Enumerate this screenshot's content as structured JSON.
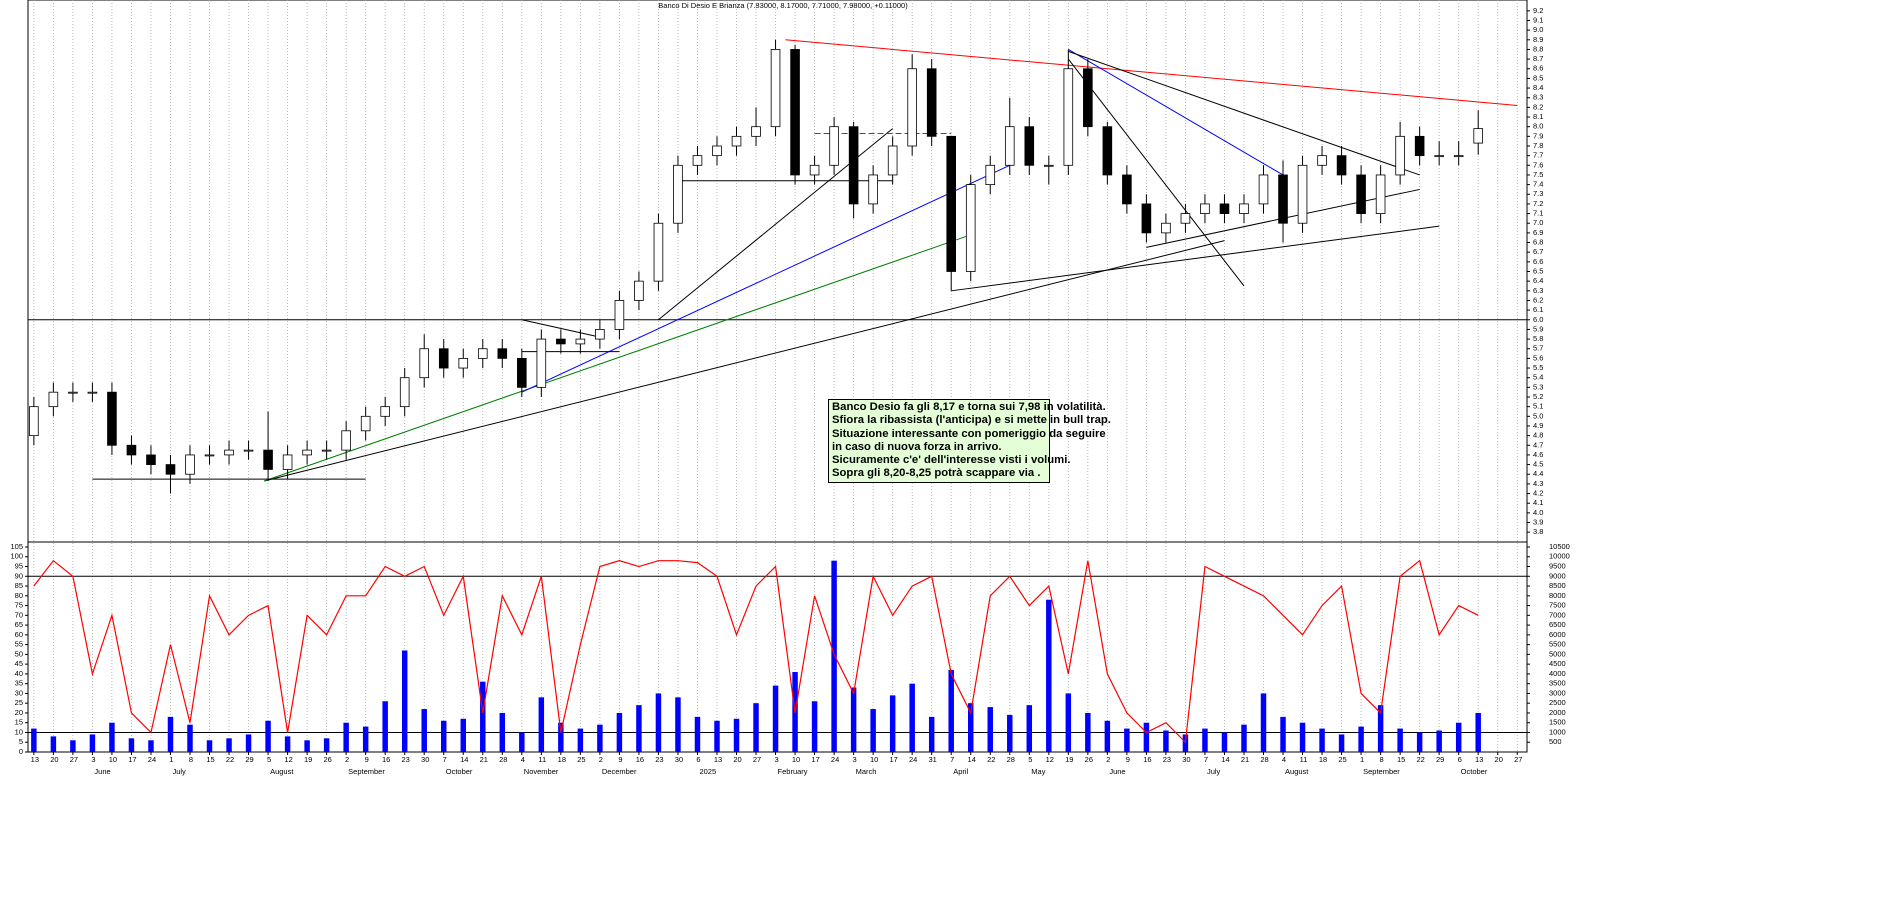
{
  "chart_data": {
    "type": "candlestick",
    "title": "Banco Di Desio E Brianza (7.83000, 8.17000, 7.71000, 7.98000, +0.11000)",
    "annotation": [
      "Banco Desio fa gli 8,17 e torna sui 7,98 in volatilità.",
      "Sfiora la ribassista (l'anticipa) e si mette in bull trap.",
      "Situazione interessante con pomeriggio da seguire",
      "in caso di nuova forza in arrivo.",
      "Sicuramente c'e' dell'interesse visti i volumi.",
      "Sopra gli 8,20-8,25 potrà scappare via ."
    ],
    "xlim": [
      -0.3,
      76.5
    ],
    "grid": "x",
    "xticks": [
      {
        "value": 0,
        "label": "13"
      },
      {
        "value": 1,
        "label": "20"
      },
      {
        "value": 2,
        "label": "27"
      },
      {
        "value": 3,
        "label": "3"
      },
      {
        "value": 4,
        "label": "10"
      },
      {
        "value": 5,
        "label": "17"
      },
      {
        "value": 6,
        "label": "24"
      },
      {
        "value": 7,
        "label": "1"
      },
      {
        "value": 8,
        "label": "8"
      },
      {
        "value": 9,
        "label": "15"
      },
      {
        "value": 10,
        "label": "22"
      },
      {
        "value": 11,
        "label": "29"
      },
      {
        "value": 12,
        "label": "5"
      },
      {
        "value": 13,
        "label": "12"
      },
      {
        "value": 14,
        "label": "19"
      },
      {
        "value": 15,
        "label": "26"
      },
      {
        "value": 16,
        "label": "2"
      },
      {
        "value": 17,
        "label": "9"
      },
      {
        "value": 18,
        "label": "16"
      },
      {
        "value": 19,
        "label": "23"
      },
      {
        "value": 20,
        "label": "30"
      },
      {
        "value": 21,
        "label": "7"
      },
      {
        "value": 22,
        "label": "14"
      },
      {
        "value": 23,
        "label": "21"
      },
      {
        "value": 24,
        "label": "28"
      },
      {
        "value": 25,
        "label": "4"
      },
      {
        "value": 26,
        "label": "11"
      },
      {
        "value": 27,
        "label": "18"
      },
      {
        "value": 28,
        "label": "25"
      },
      {
        "value": 29,
        "label": "2"
      },
      {
        "value": 30,
        "label": "9"
      },
      {
        "value": 31,
        "label": "16"
      },
      {
        "value": 32,
        "label": "23"
      },
      {
        "value": 33,
        "label": "30"
      },
      {
        "value": 34,
        "label": "6"
      },
      {
        "value": 35,
        "label": "13"
      },
      {
        "value": 36,
        "label": "20"
      },
      {
        "value": 37,
        "label": "27"
      },
      {
        "value": 38,
        "label": "3"
      },
      {
        "value": 39,
        "label": "10"
      },
      {
        "value": 40,
        "label": "17"
      },
      {
        "value": 41,
        "label": "24"
      },
      {
        "value": 42,
        "label": "3"
      },
      {
        "value": 43,
        "label": "10"
      },
      {
        "value": 44,
        "label": "17"
      },
      {
        "value": 45,
        "label": "24"
      },
      {
        "value": 46,
        "label": "31"
      },
      {
        "value": 47,
        "label": "7"
      },
      {
        "value": 48,
        "label": "14"
      },
      {
        "value": 49,
        "label": "22"
      },
      {
        "value": 50,
        "label": "28"
      },
      {
        "value": 51,
        "label": "5"
      },
      {
        "value": 52,
        "label": "12"
      },
      {
        "value": 53,
        "label": "19"
      },
      {
        "value": 54,
        "label": "26"
      },
      {
        "value": 55,
        "label": "2"
      },
      {
        "value": 56,
        "label": "9"
      },
      {
        "value": 57,
        "label": "16"
      },
      {
        "value": 58,
        "label": "23"
      },
      {
        "value": 59,
        "label": "30"
      },
      {
        "value": 60,
        "label": "7"
      },
      {
        "value": 61,
        "label": "14"
      },
      {
        "value": 62,
        "label": "21"
      },
      {
        "value": 63,
        "label": "28"
      },
      {
        "value": 64,
        "label": "4"
      },
      {
        "value": 65,
        "label": "11"
      },
      {
        "value": 66,
        "label": "18"
      },
      {
        "value": 67,
        "label": "25"
      },
      {
        "value": 68,
        "label": "1"
      },
      {
        "value": 69,
        "label": "8"
      },
      {
        "value": 70,
        "label": "15"
      },
      {
        "value": 71,
        "label": "22"
      },
      {
        "value": 72,
        "label": "29"
      },
      {
        "value": 73,
        "label": "6"
      },
      {
        "value": 74,
        "label": "13"
      },
      {
        "value": 75,
        "label": "20"
      },
      {
        "value": 76,
        "label": "27"
      }
    ],
    "months": [
      {
        "value": 3,
        "label": "June"
      },
      {
        "value": 7,
        "label": "July"
      },
      {
        "value": 12,
        "label": "August"
      },
      {
        "value": 16,
        "label": "September"
      },
      {
        "value": 21,
        "label": "October"
      },
      {
        "value": 25,
        "label": "November"
      },
      {
        "value": 29,
        "label": "December"
      },
      {
        "value": 34,
        "label": "2025"
      },
      {
        "value": 38,
        "label": "February"
      },
      {
        "value": 42,
        "label": "March"
      },
      {
        "value": 47,
        "label": "April"
      },
      {
        "value": 51,
        "label": "May"
      },
      {
        "value": 55,
        "label": "June"
      },
      {
        "value": 60,
        "label": "July"
      },
      {
        "value": 64,
        "label": "August"
      },
      {
        "value": 68,
        "label": "September"
      },
      {
        "value": 73,
        "label": "October"
      }
    ],
    "ylim": [
      3.75,
      9.25
    ],
    "yticks": [
      3.8,
      3.9,
      {
        "value": 4,
        "label": "4.0"
      },
      4.1,
      4.2,
      4.3,
      4.4,
      4.5,
      4.6,
      4.7,
      4.8,
      4.9,
      {
        "value": 5,
        "label": "5.0"
      },
      5.1,
      5.2,
      5.3,
      5.4,
      5.5,
      5.6,
      5.7,
      5.8,
      5.9,
      {
        "value": 6,
        "label": "6.0"
      },
      6.1,
      6.2,
      6.3,
      6.4,
      6.5,
      6.6,
      6.7,
      6.8,
      6.9,
      {
        "value": 7,
        "label": "7.0"
      },
      7.1,
      7.2,
      7.3,
      7.4,
      7.5,
      7.6,
      7.7,
      7.8,
      7.9,
      {
        "value": 8,
        "label": "8.0"
      },
      8.1,
      8.2,
      8.3,
      8.4,
      8.5,
      8.6,
      8.7,
      8.8,
      8.9,
      {
        "value": 9,
        "label": "9.0"
      },
      9.1,
      9.2
    ],
    "x": [
      0,
      1,
      2,
      3,
      4,
      5,
      6,
      7,
      8,
      9,
      10,
      11,
      12,
      13,
      14,
      15,
      16,
      17,
      18,
      19,
      20,
      21,
      22,
      23,
      24,
      25,
      26,
      27,
      28,
      29,
      30,
      31,
      32,
      33,
      34,
      35,
      36,
      37,
      38,
      39,
      40,
      41,
      42,
      43,
      44,
      45,
      46,
      47,
      48,
      49,
      50,
      51,
      52,
      53,
      54,
      55,
      56,
      57,
      58,
      59,
      60,
      61,
      62,
      63,
      64,
      65,
      66,
      67,
      68,
      69,
      70,
      71,
      72,
      73,
      74
    ],
    "open": [
      4.8,
      5.1,
      5.25,
      5.25,
      5.25,
      4.7,
      4.6,
      4.5,
      4.4,
      4.6,
      4.6,
      4.65,
      4.65,
      4.45,
      4.6,
      4.65,
      4.65,
      4.85,
      5.0,
      5.1,
      5.4,
      5.7,
      5.5,
      5.6,
      5.7,
      5.6,
      5.3,
      5.8,
      5.75,
      5.8,
      5.9,
      6.2,
      6.4,
      7.0,
      7.6,
      7.7,
      7.8,
      7.9,
      8.0,
      8.8,
      7.5,
      7.6,
      8.0,
      7.2,
      7.5,
      7.8,
      8.6,
      7.9,
      6.5,
      7.4,
      7.6,
      8.0,
      7.6,
      7.6,
      8.6,
      8.0,
      7.5,
      7.2,
      6.9,
      7.0,
      7.1,
      7.2,
      7.1,
      7.2,
      7.5,
      7.0,
      7.6,
      7.7,
      7.5,
      7.1,
      7.5,
      7.9,
      7.7,
      7.7,
      7.83
    ],
    "high": [
      5.2,
      5.35,
      5.35,
      5.35,
      5.35,
      4.8,
      4.7,
      4.6,
      4.7,
      4.7,
      4.75,
      4.75,
      5.05,
      4.7,
      4.75,
      4.75,
      4.95,
      5.1,
      5.2,
      5.5,
      5.85,
      5.8,
      5.7,
      5.8,
      5.8,
      5.7,
      5.9,
      5.9,
      5.9,
      6.0,
      6.3,
      6.5,
      7.1,
      7.7,
      7.8,
      7.9,
      8.0,
      8.2,
      8.9,
      8.85,
      7.7,
      8.1,
      8.05,
      7.6,
      7.9,
      8.75,
      8.7,
      7.9,
      7.5,
      7.7,
      8.3,
      8.1,
      7.7,
      8.8,
      8.7,
      8.05,
      7.6,
      7.3,
      7.1,
      7.2,
      7.3,
      7.3,
      7.3,
      7.6,
      7.65,
      7.7,
      7.8,
      7.8,
      7.6,
      7.6,
      8.05,
      8.0,
      7.85,
      7.85,
      8.17
    ],
    "low": [
      4.7,
      5.0,
      5.15,
      5.15,
      4.6,
      4.5,
      4.4,
      4.2,
      4.3,
      4.5,
      4.5,
      4.55,
      4.33,
      4.35,
      4.5,
      4.55,
      4.55,
      4.75,
      4.9,
      5.0,
      5.3,
      5.4,
      5.4,
      5.5,
      5.5,
      5.2,
      5.2,
      5.65,
      5.65,
      5.7,
      5.8,
      6.1,
      6.3,
      6.9,
      7.5,
      7.6,
      7.7,
      7.8,
      7.9,
      7.4,
      7.4,
      7.5,
      7.05,
      7.1,
      7.4,
      7.7,
      7.8,
      6.3,
      6.4,
      7.3,
      7.5,
      7.5,
      7.4,
      7.5,
      7.9,
      7.4,
      7.1,
      6.8,
      6.8,
      6.9,
      7.0,
      7.0,
      7.0,
      7.1,
      6.8,
      6.9,
      7.5,
      7.4,
      7.0,
      7.0,
      7.4,
      7.6,
      7.6,
      7.6,
      7.71
    ],
    "close": [
      5.1,
      5.25,
      5.25,
      5.25,
      4.7,
      4.6,
      4.5,
      4.4,
      4.6,
      4.6,
      4.65,
      4.65,
      4.45,
      4.6,
      4.65,
      4.65,
      4.85,
      5.0,
      5.1,
      5.4,
      5.7,
      5.5,
      5.6,
      5.7,
      5.6,
      5.3,
      5.8,
      5.75,
      5.8,
      5.9,
      6.2,
      6.4,
      7.0,
      7.6,
      7.7,
      7.8,
      7.9,
      8.0,
      8.8,
      7.5,
      7.6,
      8.0,
      7.2,
      7.5,
      7.8,
      8.6,
      7.9,
      6.5,
      7.4,
      7.6,
      8.0,
      7.6,
      7.6,
      8.6,
      8.0,
      7.5,
      7.2,
      6.9,
      7.0,
      7.1,
      7.2,
      7.1,
      7.2,
      7.5,
      7.0,
      7.6,
      7.7,
      7.5,
      7.1,
      7.5,
      7.9,
      7.7,
      7.7,
      7.7,
      7.98
    ],
    "hlines": [
      6.0
    ],
    "trendlines": [
      {
        "color": "#ff0000",
        "x": [
          38.5,
          76
        ],
        "y": [
          8.9,
          8.22
        ]
      },
      {
        "color": "#000000",
        "x": [
          11.8,
          61
        ],
        "y": [
          4.33,
          6.82
        ]
      },
      {
        "color": "#008000",
        "x": [
          11.8,
          48
        ],
        "y": [
          4.33,
          6.88
        ]
      },
      {
        "color": "#0000ff",
        "x": [
          25,
          50
        ],
        "y": [
          5.25,
          7.6
        ]
      },
      {
        "color": "#0000ff",
        "x": [
          53,
          64
        ],
        "y": [
          8.8,
          7.5
        ]
      },
      {
        "color": "#000000",
        "x": [
          53,
          71
        ],
        "y": [
          8.78,
          7.5
        ]
      },
      {
        "color": "#000000",
        "x": [
          53,
          62
        ],
        "y": [
          8.7,
          6.35
        ]
      },
      {
        "color": "#000000",
        "x": [
          47,
          72
        ],
        "y": [
          6.3,
          6.97
        ]
      },
      {
        "color": "#000000",
        "x": [
          32,
          44
        ],
        "y": [
          6.0,
          7.98
        ]
      },
      {
        "color": "#000000",
        "x": [
          33,
          44
        ],
        "y": [
          7.44,
          7.44
        ]
      },
      {
        "color": "#000000",
        "x": [
          3,
          17
        ],
        "y": [
          4.35,
          4.35
        ]
      },
      {
        "color": "#000000",
        "x": [
          25,
          30
        ],
        "y": [
          5.67,
          5.67
        ]
      },
      {
        "color": "#000000",
        "x": [
          25,
          29
        ],
        "y": [
          6.0,
          5.82
        ]
      },
      {
        "color": "#000000",
        "x": [
          57,
          71
        ],
        "y": [
          6.75,
          7.35
        ]
      },
      {
        "color": "#ff0000",
        "x": [
          40,
          47
        ],
        "y": [
          7.93,
          7.93
        ],
        "dashed": true
      }
    ],
    "indicator": {
      "color": "#ff0000",
      "ylim": [
        0,
        105
      ],
      "yticks": [
        0,
        5,
        10,
        15,
        20,
        25,
        30,
        35,
        40,
        45,
        50,
        55,
        60,
        65,
        70,
        75,
        80,
        85,
        90,
        95,
        100,
        105
      ],
      "levels": [
        90,
        10
      ],
      "values": [
        85,
        98,
        90,
        40,
        70,
        20,
        10,
        55,
        15,
        80,
        60,
        70,
        75,
        10,
        70,
        60,
        80,
        80,
        95,
        90,
        95,
        70,
        90,
        20,
        80,
        60,
        90,
        10,
        55,
        95,
        98,
        95,
        98,
        98,
        97,
        90,
        60,
        85,
        95,
        20,
        80,
        50,
        30,
        90,
        70,
        85,
        90,
        40,
        20,
        80,
        90,
        75,
        85,
        40,
        98,
        40,
        20,
        10,
        15,
        5,
        95,
        90,
        85,
        80,
        70,
        60,
        75,
        85,
        30,
        20,
        90,
        98,
        60,
        75,
        70
      ]
    },
    "volume": {
      "color": "#0000ff",
      "ylim": [
        0,
        10500
      ],
      "yticks": [
        500,
        1000,
        1500,
        2000,
        2500,
        3000,
        3500,
        4000,
        4500,
        5000,
        5500,
        6000,
        6500,
        7000,
        7500,
        8000,
        8500,
        9000,
        9500,
        10000,
        10500
      ],
      "values": [
        1200,
        800,
        600,
        900,
        1500,
        700,
        600,
        1800,
        1400,
        600,
        700,
        900,
        1600,
        800,
        600,
        700,
        1500,
        1300,
        2600,
        5200,
        2200,
        1600,
        1700,
        3600,
        2000,
        1000,
        2800,
        1500,
        1200,
        1400,
        2000,
        2400,
        3000,
        2800,
        1800,
        1600,
        1700,
        2500,
        3400,
        4100,
        2600,
        9800,
        3300,
        2200,
        2900,
        3500,
        1800,
        4200,
        2500,
        2300,
        1900,
        2400,
        7800,
        3000,
        2000,
        1600,
        1200,
        1500,
        1100,
        900,
        1200,
        1000,
        1400,
        3000,
        1800,
        1500,
        1200,
        900,
        1300,
        2400,
        1200,
        1000,
        1100,
        1500,
        2000
      ]
    }
  }
}
